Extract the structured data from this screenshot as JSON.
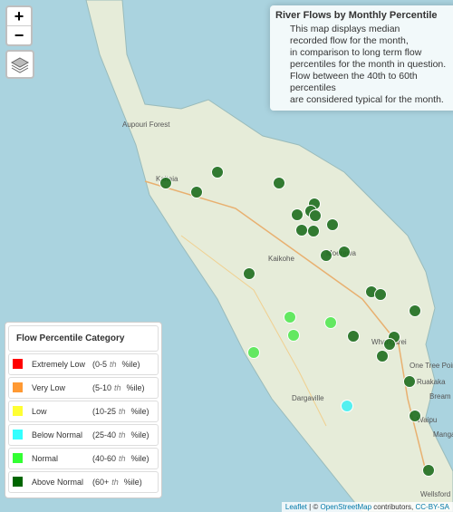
{
  "zoom": {
    "in": "+",
    "out": "−"
  },
  "info": {
    "title": "River Flows by Monthly Percentile",
    "lines": [
      "This map displays median",
      "recorded flow for the month,",
      "in comparison to long term flow",
      "percentiles for the month in question.",
      "Flow between the 40th to 60th percentiles",
      "are considered typical for the month."
    ]
  },
  "legend": {
    "title": "Flow Percentile Category",
    "items": [
      {
        "label": "Extremely Low",
        "range": "(0-5",
        "suffix": "th",
        "unit": "%ile)",
        "color": "#ff0000"
      },
      {
        "label": "Very Low",
        "range": "(5-10",
        "suffix": "th",
        "unit": "%ile)",
        "color": "#ff9933"
      },
      {
        "label": "Low",
        "range": "(10-25",
        "suffix": "th",
        "unit": "%ile)",
        "color": "#ffff33"
      },
      {
        "label": "Below Normal",
        "range": "(25-40",
        "suffix": "th",
        "unit": "%ile)",
        "color": "#33ffff"
      },
      {
        "label": "Normal",
        "range": "(40-60",
        "suffix": "th",
        "unit": "%ile)",
        "color": "#33ff33"
      },
      {
        "label": "Above Normal",
        "range": "(60+",
        "suffix": "th",
        "unit": "%ile)",
        "color": "#006600"
      }
    ]
  },
  "places": [
    "Aupouri Forest",
    "Kaitaia",
    "Kaikohe",
    "Moerewa",
    "Whangarei",
    "One Tree Point",
    "Bream Bay",
    "Dargaville",
    "Ruakaka",
    "Waipu",
    "Mangawhai Heads",
    "Wellsford"
  ],
  "attribution": {
    "leaflet": "Leaflet",
    "sep": " | © ",
    "osm": "OpenStreetMap",
    "contrib": " contributors, ",
    "license": "CC-BY-SA"
  }
}
